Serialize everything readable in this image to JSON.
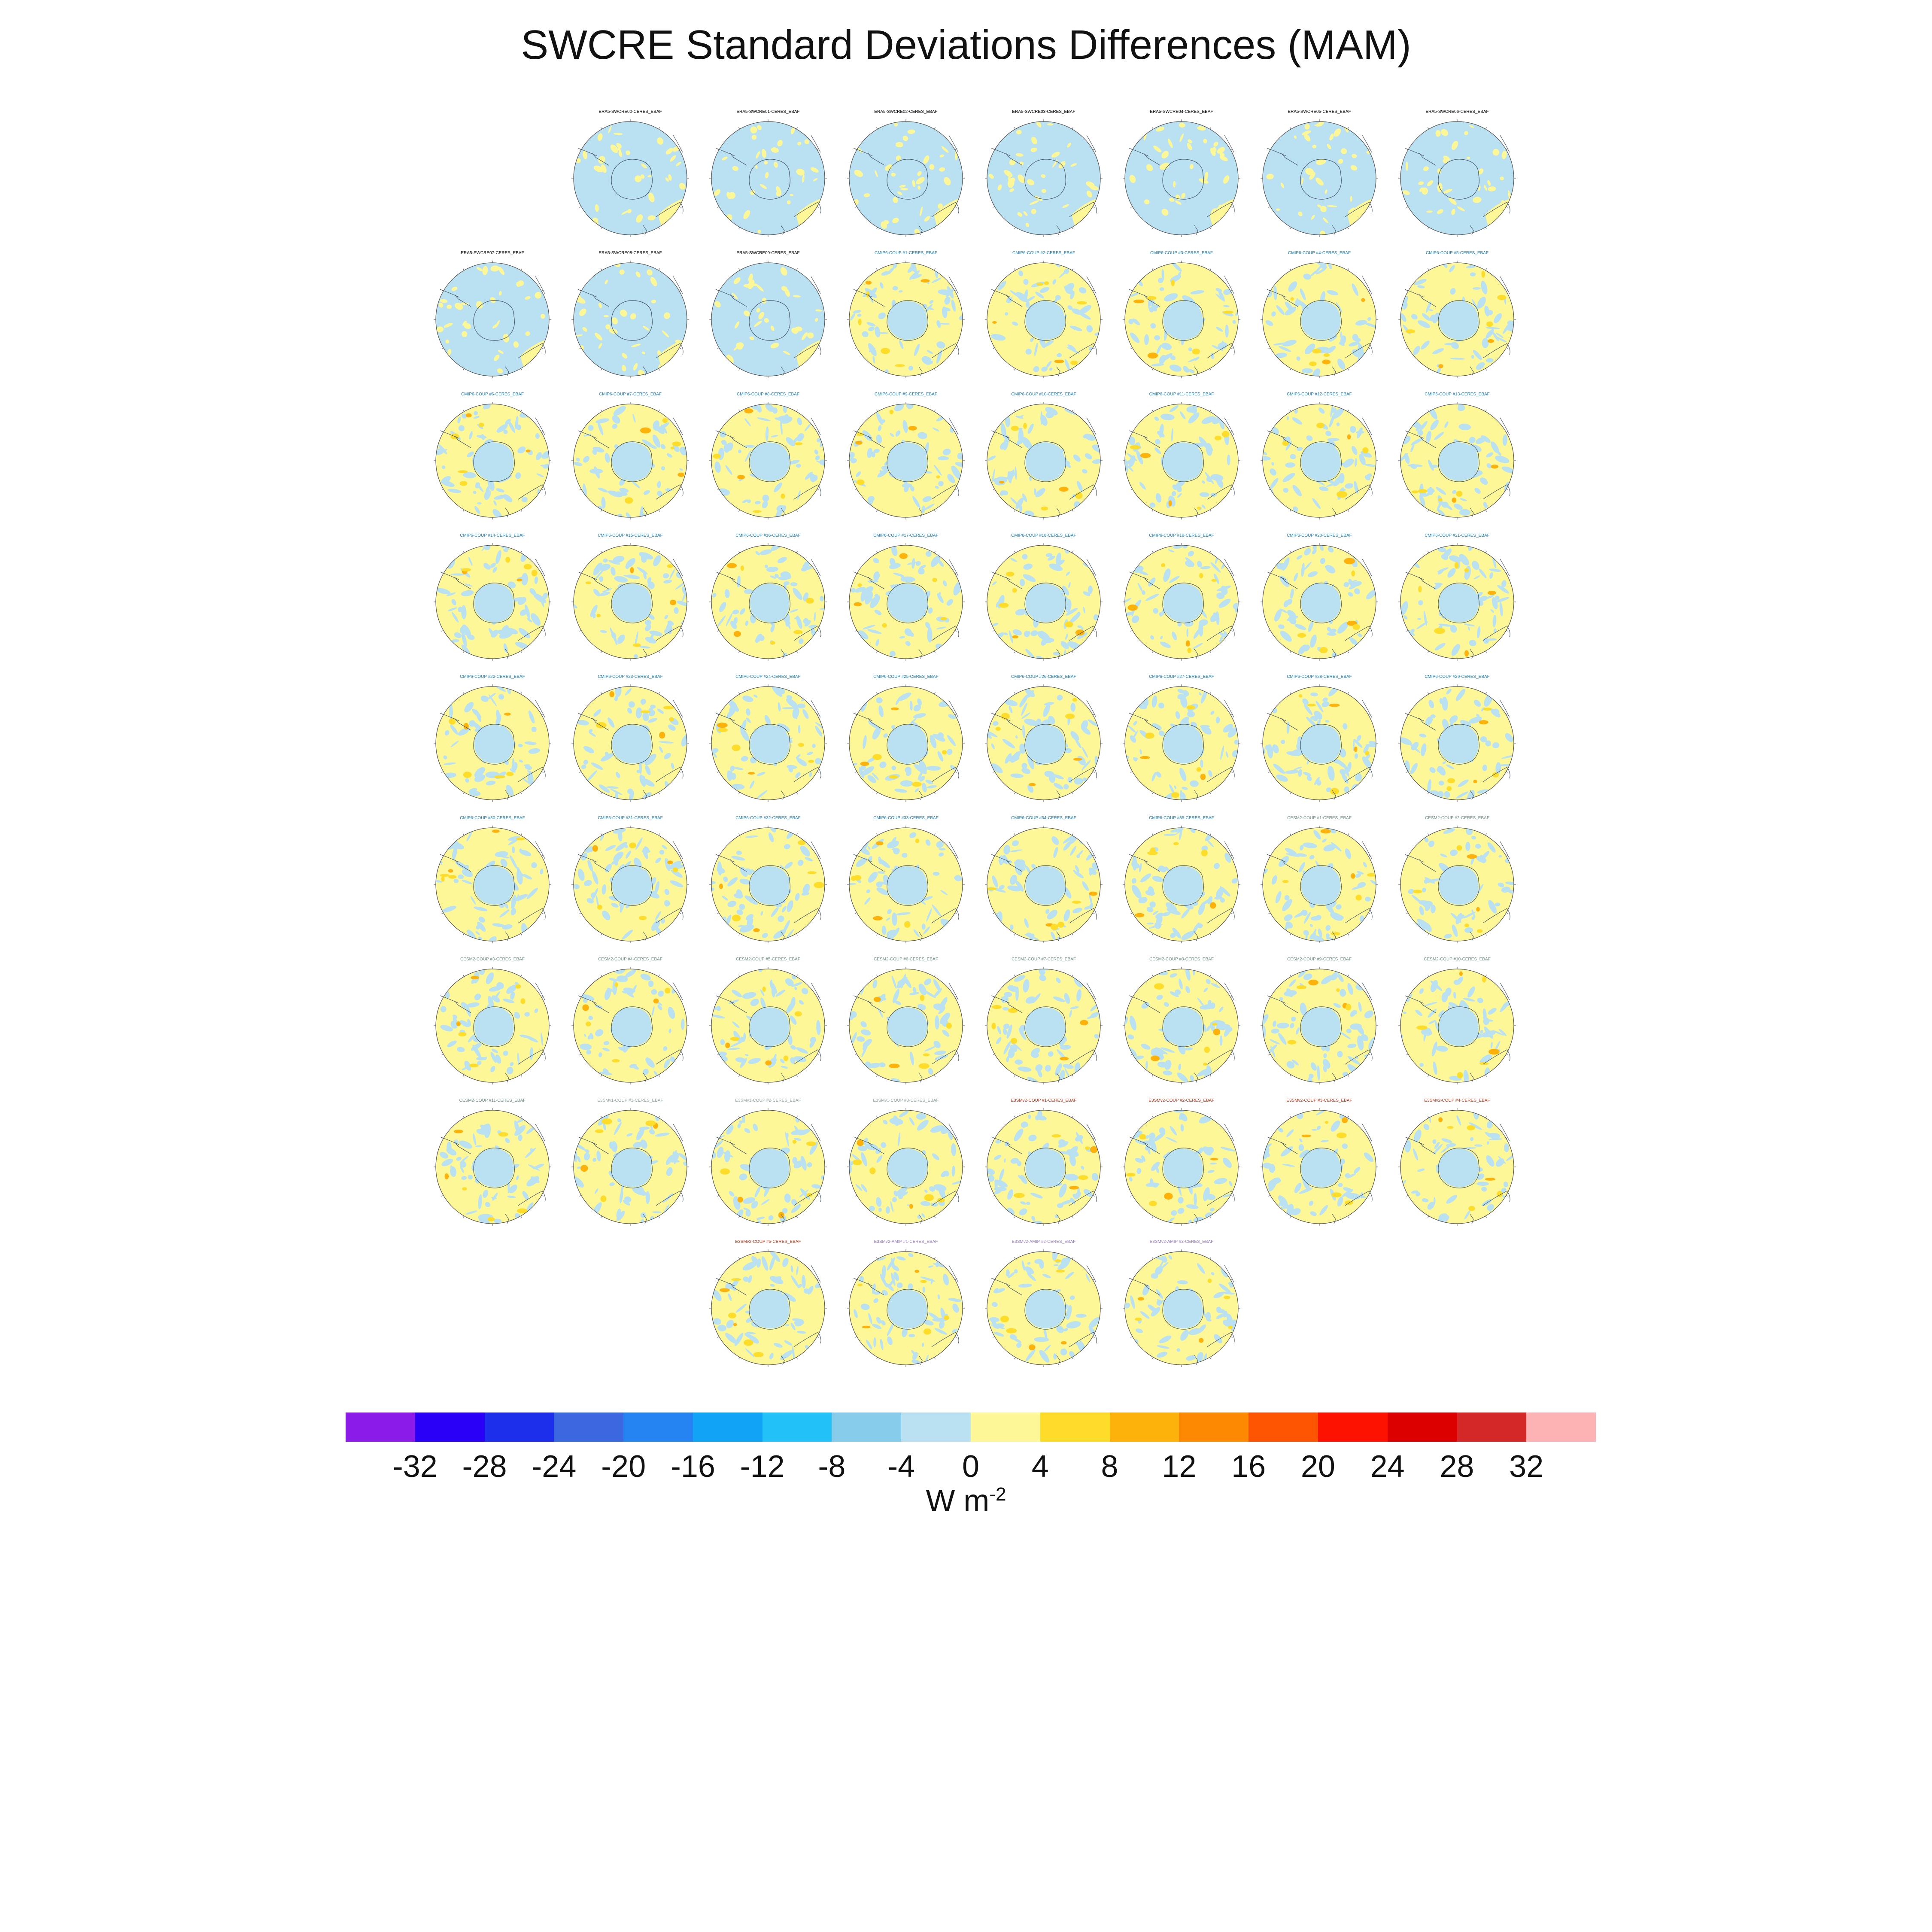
{
  "title": "SWCRE Standard Deviations Differences (MAM)",
  "units": {
    "main": "W m",
    "exponent": "-2"
  },
  "colorbar": {
    "labels": [
      "-32",
      "-28",
      "-24",
      "-20",
      "-16",
      "-12",
      "-8",
      "-4",
      "0",
      "4",
      "8",
      "12",
      "16",
      "20",
      "24",
      "28",
      "32"
    ],
    "colors": [
      "#8a1be8",
      "#2a00f6",
      "#1e2fec",
      "#3b68e0",
      "#2684f2",
      "#11a3f5",
      "#22c1f7",
      "#88ccec",
      "#b9e1f2",
      "#fdf797",
      "#fddd2a",
      "#fdb20b",
      "#fd8903",
      "#fd5502",
      "#fd1100",
      "#dc0000",
      "#d42828",
      "#fdb3b3"
    ]
  },
  "legend_colors": {
    "ocean": "#b9e1f2",
    "pos": "#fdf797",
    "pos2": "#fddd2a",
    "pos3": "#fdb20b"
  },
  "rows": [
    [
      {
        "title": "ERA5-SWCRE00-CERES_EBAF",
        "color": "#000000",
        "style": "era5",
        "seed": 1
      },
      {
        "title": "ERA5-SWCRE01-CERES_EBAF",
        "color": "#000000",
        "style": "era5",
        "seed": 2
      },
      {
        "title": "ERA5-SWCRE02-CERES_EBAF",
        "color": "#000000",
        "style": "era5",
        "seed": 3
      },
      {
        "title": "ERA5-SWCRE03-CERES_EBAF",
        "color": "#000000",
        "style": "era5",
        "seed": 4
      },
      {
        "title": "ERA5-SWCRE04-CERES_EBAF",
        "color": "#000000",
        "style": "era5",
        "seed": 5
      },
      {
        "title": "ERA5-SWCRE05-CERES_EBAF",
        "color": "#000000",
        "style": "era5",
        "seed": 6
      },
      {
        "title": "ERA5-SWCRE06-CERES_EBAF",
        "color": "#000000",
        "style": "era5",
        "seed": 7
      }
    ],
    [
      {
        "title": "ERA5-SWCRE07-CERES_EBAF",
        "color": "#000000",
        "style": "era5",
        "seed": 8
      },
      {
        "title": "ERA5-SWCRE08-CERES_EBAF",
        "color": "#000000",
        "style": "era5",
        "seed": 9
      },
      {
        "title": "ERA5-SWCRE09-CERES_EBAF",
        "color": "#000000",
        "style": "era5",
        "seed": 10
      },
      {
        "title": "CMIP6-COUP #1-CERES_EBAF",
        "color": "#1b7fb8",
        "style": "model",
        "seed": 11
      },
      {
        "title": "CMIP6-COUP #2-CERES_EBAF",
        "color": "#1b7fb8",
        "style": "model",
        "seed": 12
      },
      {
        "title": "CMIP6-COUP #3-CERES_EBAF",
        "color": "#1b7fb8",
        "style": "model",
        "seed": 13
      },
      {
        "title": "CMIP6-COUP #4-CERES_EBAF",
        "color": "#1b7fb8",
        "style": "model",
        "seed": 14
      },
      {
        "title": "CMIP6-COUP #5-CERES_EBAF",
        "color": "#1b7fb8",
        "style": "model",
        "seed": 15
      }
    ],
    [
      {
        "title": "CMIP6-COUP #6-CERES_EBAF",
        "color": "#1b7fb8",
        "style": "model",
        "seed": 16
      },
      {
        "title": "CMIP6-COUP #7-CERES_EBAF",
        "color": "#1b7fb8",
        "style": "model",
        "seed": 17
      },
      {
        "title": "CMIP6-COUP #8-CERES_EBAF",
        "color": "#1b7fb8",
        "style": "model",
        "seed": 18
      },
      {
        "title": "CMIP6-COUP #9-CERES_EBAF",
        "color": "#1b7fb8",
        "style": "model",
        "seed": 19
      },
      {
        "title": "CMIP6-COUP #10-CERES_EBAF",
        "color": "#1b7fb8",
        "style": "model",
        "seed": 20
      },
      {
        "title": "CMIP6-COUP #11-CERES_EBAF",
        "color": "#1b7fb8",
        "style": "model",
        "seed": 21
      },
      {
        "title": "CMIP6-COUP #12-CERES_EBAF",
        "color": "#1b7fb8",
        "style": "model",
        "seed": 22
      },
      {
        "title": "CMIP6-COUP #13-CERES_EBAF",
        "color": "#1b7fb8",
        "style": "model",
        "seed": 23
      }
    ],
    [
      {
        "title": "CMIP6-COUP #14-CERES_EBAF",
        "color": "#1b7fb8",
        "style": "model",
        "seed": 24
      },
      {
        "title": "CMIP6-COUP #15-CERES_EBAF",
        "color": "#1b7fb8",
        "style": "model",
        "seed": 25
      },
      {
        "title": "CMIP6-COUP #16-CERES_EBAF",
        "color": "#1b7fb8",
        "style": "model",
        "seed": 26
      },
      {
        "title": "CMIP6-COUP #17-CERES_EBAF",
        "color": "#1b7fb8",
        "style": "model",
        "seed": 27
      },
      {
        "title": "CMIP6-COUP #18-CERES_EBAF",
        "color": "#1b7fb8",
        "style": "model",
        "seed": 28
      },
      {
        "title": "CMIP6-COUP #19-CERES_EBAF",
        "color": "#1b7fb8",
        "style": "model",
        "seed": 29
      },
      {
        "title": "CMIP6-COUP #20-CERES_EBAF",
        "color": "#1b7fb8",
        "style": "model",
        "seed": 30
      },
      {
        "title": "CMIP6-COUP #21-CERES_EBAF",
        "color": "#1b7fb8",
        "style": "model",
        "seed": 31
      }
    ],
    [
      {
        "title": "CMIP6-COUP #22-CERES_EBAF",
        "color": "#1b7fb8",
        "style": "model",
        "seed": 32
      },
      {
        "title": "CMIP6-COUP #23-CERES_EBAF",
        "color": "#1b7fb8",
        "style": "model",
        "seed": 33
      },
      {
        "title": "CMIP6-COUP #24-CERES_EBAF",
        "color": "#1b7fb8",
        "style": "model",
        "seed": 34
      },
      {
        "title": "CMIP6-COUP #25-CERES_EBAF",
        "color": "#1b7fb8",
        "style": "model",
        "seed": 35
      },
      {
        "title": "CMIP6-COUP #26-CERES_EBAF",
        "color": "#1b7fb8",
        "style": "model",
        "seed": 36
      },
      {
        "title": "CMIP6-COUP #27-CERES_EBAF",
        "color": "#1b7fb8",
        "style": "model",
        "seed": 37
      },
      {
        "title": "CMIP6-COUP #28-CERES_EBAF",
        "color": "#1b7fb8",
        "style": "model",
        "seed": 38
      },
      {
        "title": "CMIP6-COUP #29-CERES_EBAF",
        "color": "#1b7fb8",
        "style": "model",
        "seed": 39
      }
    ],
    [
      {
        "title": "CMIP6-COUP #30-CERES_EBAF",
        "color": "#1b7fb8",
        "style": "model",
        "seed": 40
      },
      {
        "title": "CMIP6-COUP #31-CERES_EBAF",
        "color": "#1b7fb8",
        "style": "model",
        "seed": 41
      },
      {
        "title": "CMIP6-COUP #32-CERES_EBAF",
        "color": "#1b7fb8",
        "style": "model",
        "seed": 42
      },
      {
        "title": "CMIP6-COUP #33-CERES_EBAF",
        "color": "#1b7fb8",
        "style": "model",
        "seed": 43
      },
      {
        "title": "CMIP6-COUP #34-CERES_EBAF",
        "color": "#1b7fb8",
        "style": "model",
        "seed": 44
      },
      {
        "title": "CMIP6-COUP #35-CERES_EBAF",
        "color": "#1b7fb8",
        "style": "model",
        "seed": 45
      },
      {
        "title": "CESM2-COUP #1-CERES_EBAF",
        "color": "#6e8f8a",
        "style": "model",
        "seed": 46
      },
      {
        "title": "CESM2-COUP #2-CERES_EBAF",
        "color": "#6e8f8a",
        "style": "model",
        "seed": 47
      }
    ],
    [
      {
        "title": "CESM2-COUP #3-CERES_EBAF",
        "color": "#6e8f8a",
        "style": "model",
        "seed": 48
      },
      {
        "title": "CESM2-COUP #4-CERES_EBAF",
        "color": "#6e8f8a",
        "style": "model",
        "seed": 49
      },
      {
        "title": "CESM2-COUP #5-CERES_EBAF",
        "color": "#6e8f8a",
        "style": "model",
        "seed": 50
      },
      {
        "title": "CESM2-COUP #6-CERES_EBAF",
        "color": "#6e8f8a",
        "style": "model",
        "seed": 51
      },
      {
        "title": "CESM2-COUP #7-CERES_EBAF",
        "color": "#6e8f8a",
        "style": "model",
        "seed": 52
      },
      {
        "title": "CESM2-COUP #8-CERES_EBAF",
        "color": "#6e8f8a",
        "style": "model",
        "seed": 53
      },
      {
        "title": "CESM2-COUP #9-CERES_EBAF",
        "color": "#6e8f8a",
        "style": "model",
        "seed": 54
      },
      {
        "title": "CESM2-COUP #10-CERES_EBAF",
        "color": "#6e8f8a",
        "style": "model",
        "seed": 55
      }
    ],
    [
      {
        "title": "CESM2-COUP #11-CERES_EBAF",
        "color": "#6e8f8a",
        "style": "model",
        "seed": 56
      },
      {
        "title": "E3SMv1-COUP #1-CERES_EBAF",
        "color": "#8fa3a0",
        "style": "model",
        "seed": 57
      },
      {
        "title": "E3SMv1-COUP #2-CERES_EBAF",
        "color": "#8fa3a0",
        "style": "model",
        "seed": 58
      },
      {
        "title": "E3SMv1-COUP #3-CERES_EBAF",
        "color": "#8fa3a0",
        "style": "model",
        "seed": 59
      },
      {
        "title": "E3SMv2-COUP #1-CERES_EBAF",
        "color": "#c0391b",
        "style": "model",
        "seed": 60
      },
      {
        "title": "E3SMv2-COUP #2-CERES_EBAF",
        "color": "#c0391b",
        "style": "model",
        "seed": 61
      },
      {
        "title": "E3SMv2-COUP #3-CERES_EBAF",
        "color": "#c0391b",
        "style": "model",
        "seed": 62
      },
      {
        "title": "E3SMv2-COUP #4-CERES_EBAF",
        "color": "#c0391b",
        "style": "model",
        "seed": 63
      }
    ],
    [
      {
        "title": "E3SMv2-COUP #5-CERES_EBAF",
        "color": "#c0391b",
        "style": "model",
        "seed": 64
      },
      {
        "title": "E3SMv2-AMIP #1-CERES_EBAF",
        "color": "#9a7fc8",
        "style": "model",
        "seed": 65
      },
      {
        "title": "E3SMv2-AMIP #2-CERES_EBAF",
        "color": "#9a7fc8",
        "style": "model",
        "seed": 66
      },
      {
        "title": "E3SMv2-AMIP #3-CERES_EBAF",
        "color": "#9a7fc8",
        "style": "model",
        "seed": 67
      }
    ]
  ]
}
